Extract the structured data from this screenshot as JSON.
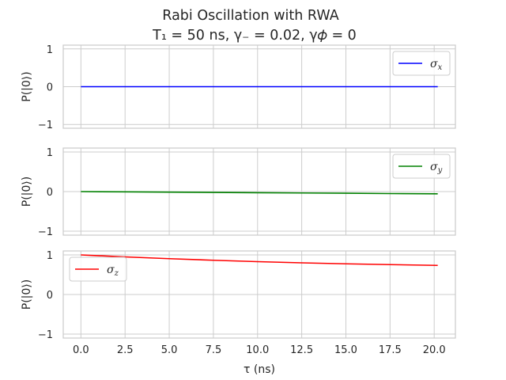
{
  "chart_data": {
    "title_line1": "Rabi Oscillation with RWA",
    "title_line2": "T₁ = 50 ns, γ₋ = 0.02, γ𝜙 = 0",
    "xlabel": "τ (ns)",
    "xlim": [
      -1.0,
      21.2
    ],
    "xticks": [
      "0.0",
      "2.5",
      "5.0",
      "7.5",
      "10.0",
      "12.5",
      "15.0",
      "17.5",
      "20.0"
    ],
    "xtick_values": [
      0,
      2.5,
      5,
      7.5,
      10,
      12.5,
      15,
      17.5,
      20
    ],
    "grid": true,
    "panels": [
      {
        "type": "line",
        "ylabel": "P(|0⟩)",
        "ylim": [
          -1.1,
          1.1
        ],
        "yticks": [
          "1",
          "0",
          "−1"
        ],
        "ytick_values": [
          1,
          0,
          -1
        ],
        "legend_position": "top-right",
        "series": [
          {
            "name": "σx",
            "base": "σ",
            "sub": "x",
            "color": "#0000ff",
            "x": [
              0,
              20.2
            ],
            "y": [
              0,
              0
            ]
          }
        ]
      },
      {
        "type": "line",
        "ylabel": "P(|0⟩)",
        "ylim": [
          -1.1,
          1.1
        ],
        "yticks": [
          "1",
          "0",
          "−1"
        ],
        "ytick_values": [
          1,
          0,
          -1
        ],
        "legend_position": "top-right",
        "series": [
          {
            "name": "σy",
            "base": "σ",
            "sub": "y",
            "color": "#008000",
            "x": [
              0,
              2.5,
              5,
              7.5,
              10,
              12.5,
              15,
              17.5,
              20.2
            ],
            "y": [
              0,
              -0.007,
              -0.014,
              -0.021,
              -0.028,
              -0.035,
              -0.042,
              -0.05,
              -0.057
            ]
          }
        ]
      },
      {
        "type": "line",
        "ylabel": "P(|0⟩)",
        "ylim": [
          -1.1,
          1.1
        ],
        "yticks": [
          "1",
          "0",
          "−1"
        ],
        "ytick_values": [
          1,
          0,
          -1
        ],
        "legend_position": "top-left",
        "series": [
          {
            "name": "σz",
            "base": "σ",
            "sub": "z",
            "color": "#ff0000",
            "x": [
              0,
              2.5,
              5,
              7.5,
              10,
              12.5,
              15,
              17.5,
              20.2
            ],
            "y": [
              1.0,
              0.95,
              0.905,
              0.865,
              0.83,
              0.8,
              0.775,
              0.755,
              0.735
            ]
          }
        ]
      }
    ]
  }
}
